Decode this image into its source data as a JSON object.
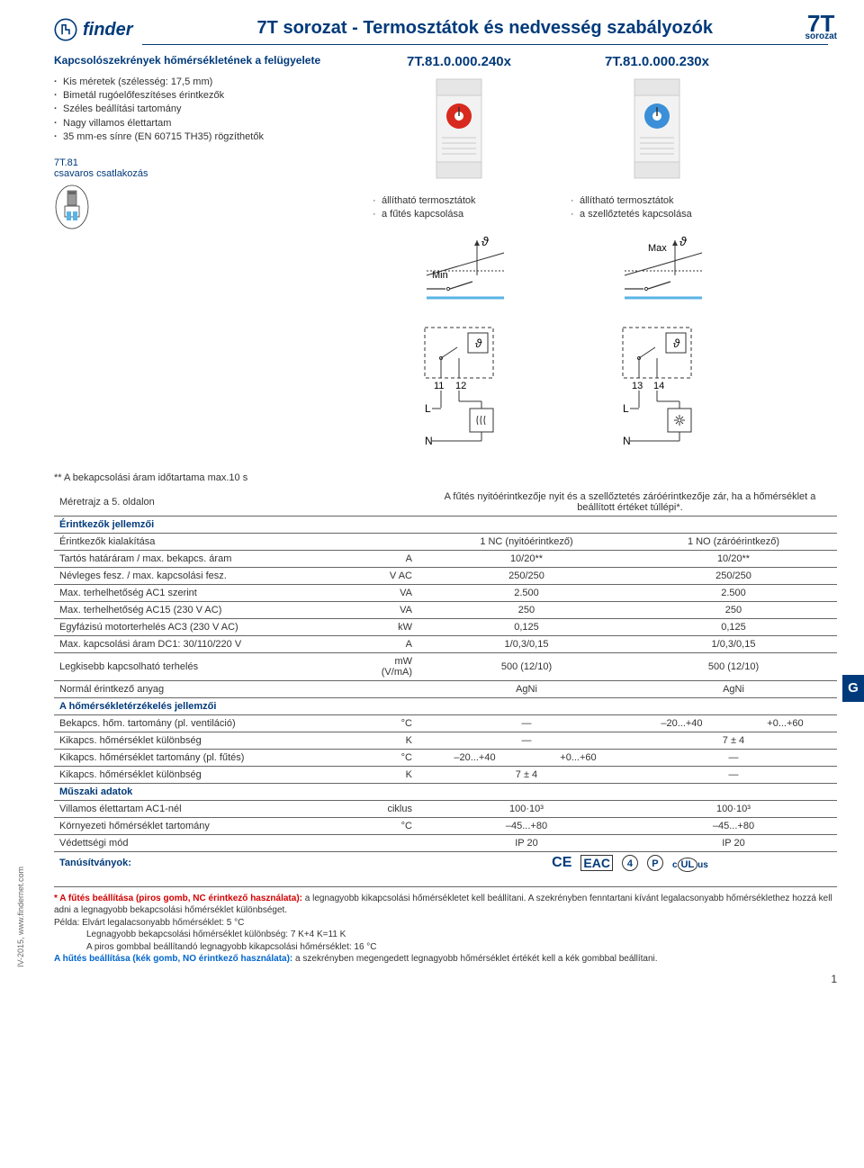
{
  "brand": "finder",
  "page_title": "7T sorozat - Termosztátok és nedvesség szabályozók",
  "series": "7T",
  "series_sub": "sorozat",
  "intro_lead": "Kapcsolószekrények hőmérsékletének a felügyelete",
  "intro_bullets": [
    "Kis méretek (szélesség: 17,5 mm)",
    "Bimetál rugóelőfeszítéses érintkezők",
    "Széles beállítási tartomány",
    "Nagy villamos élettartam",
    "35 mm-es sínre (EN 60715 TH35) rögzíthetők"
  ],
  "sub7_line1": "7T.81",
  "sub7_line2": "csavaros csatlakozás",
  "models": [
    {
      "code": "7T.81.0.000.240x",
      "dial_color": "#d82a1e",
      "features": [
        "állítható termosztátok",
        "a fűtés kapcsolása"
      ],
      "graph_label": "Min",
      "pin_a": "11",
      "pin_b": "12",
      "load_symbol": "heat"
    },
    {
      "code": "7T.81.0.000.230x",
      "dial_color": "#3a8fd8",
      "features": [
        "állítható termosztátok",
        "a szellőztetés kapcsolása"
      ],
      "graph_label": "Max",
      "pin_a": "13",
      "pin_b": "14",
      "load_symbol": "fan"
    }
  ],
  "duration_note": "** A bekapcsolási áram időtartama max.10 s",
  "dim_note": "Méretrajz a 5. oldalon",
  "header_note": "A fűtés nyitóérintkezője nyit és a szellőztetés záróérintkezője zár, ha a hőmérséklet a beállított értéket túllépi*.",
  "sections": {
    "contacts": "Érintkezők jellemzői",
    "temp": "A hőmérsékletérzékelés jellemzői",
    "tech": "Műszaki adatok",
    "cert": "Tanúsítványok:"
  },
  "rows": [
    {
      "label": "Érintkezők kialakítása",
      "unit": "",
      "c1": "1 NC (nyitóérintkező)",
      "c2": "1 NO (záróérintkező)"
    },
    {
      "label": "Tartós határáram / max. bekapcs. áram",
      "unit": "A",
      "c1": "10/20**",
      "c2": "10/20**"
    },
    {
      "label": "Névleges fesz. / max. kapcsolási fesz.",
      "unit": "V AC",
      "c1": "250/250",
      "c2": "250/250"
    },
    {
      "label": "Max. terhelhetőség AC1 szerint",
      "unit": "VA",
      "c1": "2.500",
      "c2": "2.500"
    },
    {
      "label": "Max. terhelhetőség AC15 (230 V AC)",
      "unit": "VA",
      "c1": "250",
      "c2": "250"
    },
    {
      "label": "Egyfázisú motorterhelés AC3 (230 V AC)",
      "unit": "kW",
      "c1": "0,125",
      "c2": "0,125"
    },
    {
      "label": "Max. kapcsolási áram DC1: 30/110/220 V",
      "unit": "A",
      "c1": "1/0,3/0,15",
      "c2": "1/0,3/0,15"
    },
    {
      "label": "Legkisebb kapcsolható terhelés",
      "unit": "mW (V/mA)",
      "c1": "500 (12/10)",
      "c2": "500 (12/10)"
    },
    {
      "label": "Normál érintkező anyag",
      "unit": "",
      "c1": "AgNi",
      "c2": "AgNi"
    }
  ],
  "temp_rows": [
    {
      "label": "Bekapcs. hőm. tartomány (pl. ventiláció)",
      "unit": "°C",
      "c1": "—",
      "c2a": "–20...+40",
      "c2b": "+0...+60"
    },
    {
      "label": "Kikapcs. hőmérséklet különbség",
      "unit": "K",
      "c1": "—",
      "c2": "7 ± 4"
    },
    {
      "label": "Kikapcs. hőmérséklet tartomány (pl. fűtés)",
      "unit": "°C",
      "c1a": "–20...+40",
      "c1b": "+0...+60",
      "c2": "—"
    },
    {
      "label": "Kikapcs. hőmérséklet különbség",
      "unit": "K",
      "c1": "7 ± 4",
      "c2": "—"
    }
  ],
  "tech_rows": [
    {
      "label": "Villamos élettartam AC1-nél",
      "unit": "ciklus",
      "c1": "100·10³",
      "c2": "100·10³"
    },
    {
      "label": "Környezeti hőmérséklet tartomány",
      "unit": "°C",
      "c1": "–45...+80",
      "c2": "–45...+80"
    },
    {
      "label": "Védettségi mód",
      "unit": "",
      "c1": "IP 20",
      "c2": "IP 20"
    }
  ],
  "cert_marks": [
    "CE",
    "EAC",
    "④",
    "Ⓟ",
    "cULus"
  ],
  "footnote": {
    "red_lead": "* A fűtés beállítása (piros gomb, NC érintkező használata):",
    "red_text": " a legnagyobb kikapcsolási hőmérsékletet kell beállítani. A szekrényben fenntartani kívánt legalacsonyabb hőmérséklethez hozzá kell adni a legnagyobb bekapcsolási hőmérséklet különbséget.",
    "example_label": "Példa: Elvárt legalacsonyabb hőmérséklet: 5 °C",
    "example_l1": "Legnagyobb bekapcsolási hőmérséklet különbség: 7 K+4 K=11 K",
    "example_l2": "A piros gombbal beállítandó legnagyobb kikapcsolási hőmérséklet: 16 °C",
    "blue_lead": "A hűtés beállítása (kék gomb, NO érintkező használata):",
    "blue_text": " a szekrényben megengedett legnagyobb hőmérséklet értékét kell a kék gombbal beállítani."
  },
  "side_text": "IV-2015, www.findernet.com",
  "page_num": "1",
  "colors": {
    "brand": "#003a7a",
    "rule": "#666666",
    "red": "#d30000",
    "blue": "#0066cc",
    "device_body": "#f2f2f2",
    "device_border": "#cccccc",
    "contact_line": "#5ab3e6"
  }
}
